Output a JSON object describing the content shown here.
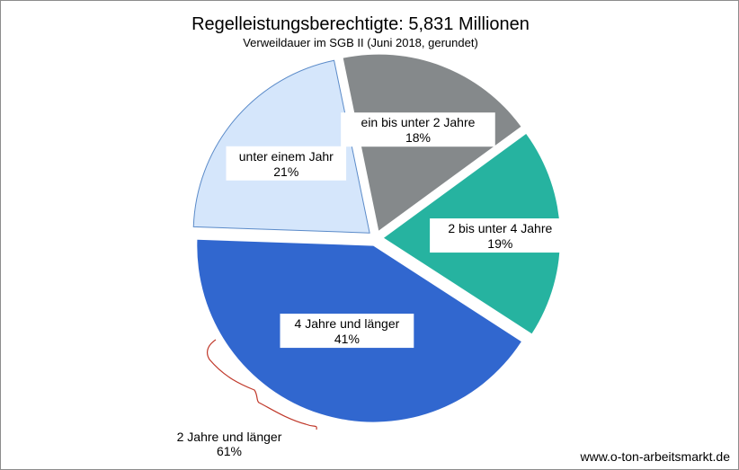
{
  "chart_data": {
    "type": "pie",
    "title": "Regelleistungsberechtigte: 5,831 Millionen",
    "subtitle": "Verweildauer  im SGB II (Juni 2018, gerundet)",
    "slices": [
      {
        "label": "unter einem Jahr",
        "value": 21,
        "value_label": "21%",
        "color": "#d5e6fb"
      },
      {
        "label": "ein bis unter 2 Jahre",
        "value": 18,
        "value_label": "18%",
        "color": "#85898b"
      },
      {
        "label": "2 bis unter 4 Jahre",
        "value": 19,
        "value_label": "19%",
        "color": "#26b3a0"
      },
      {
        "label": "4 Jahre und länger",
        "value": 41,
        "value_label": "41%",
        "color": "#3167cf"
      }
    ],
    "annotation": {
      "line1": "2 Jahre und länger",
      "line2": "61%",
      "color": "#c0392b"
    }
  },
  "watermark": "www.o-ton-arbeitsmarkt.de"
}
